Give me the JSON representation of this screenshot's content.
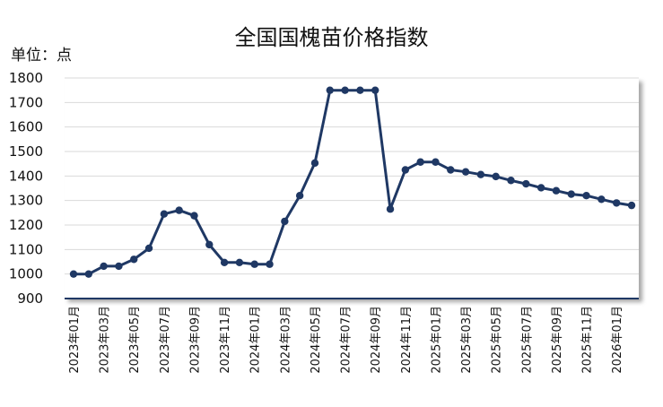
{
  "chart_data": {
    "type": "line",
    "title": "全国国槐苗价格指数",
    "unit_label": "单位：点",
    "xlabel": "",
    "ylabel": "",
    "ylim": [
      900,
      1800
    ],
    "yticks": [
      900,
      1000,
      1100,
      1200,
      1300,
      1400,
      1500,
      1600,
      1700,
      1800
    ],
    "grid": true,
    "categories": [
      "2023年01月",
      "2023年02月",
      "2023年03月",
      "2023年04月",
      "2023年05月",
      "2023年06月",
      "2023年07月",
      "2023年08月",
      "2023年09月",
      "2023年10月",
      "2023年11月",
      "2023年12月",
      "2024年01月",
      "2024年02月",
      "2024年03月",
      "2024年04月",
      "2024年05月",
      "2024年06月",
      "2024年07月",
      "2024年08月",
      "2024年09月",
      "2024年10月",
      "2024年11月",
      "2024年12月",
      "2025年01月",
      "2025年02月",
      "2025年03月",
      "2025年04月",
      "2025年05月",
      "2025年06月",
      "2025年07月",
      "2025年08月",
      "2025年09月",
      "2025年10月",
      "2025年11月",
      "2025年12月",
      "2026年01月",
      "2026年02月"
    ],
    "tick_labels_shown": [
      "2023年01月",
      "2023年03月",
      "2023年05月",
      "2023年07月",
      "2023年09月",
      "2023年11月",
      "2024年01月",
      "2024年03月",
      "2024年05月",
      "2024年07月",
      "2024年09月",
      "2024年11月",
      "2025年01月",
      "2025年03月",
      "2025年05月",
      "2025年07月",
      "2025年09月",
      "2025年11月",
      "2026年01月"
    ],
    "series": [
      {
        "values": [
          1000,
          1000,
          1032,
          1032,
          1060,
          1105,
          1245,
          1260,
          1238,
          1120,
          1047,
          1047,
          1040,
          1040,
          1215,
          1320,
          1453,
          1750,
          1750,
          1750,
          1750,
          1265,
          1425,
          1457,
          1457,
          1425,
          1417,
          1406,
          1398,
          1382,
          1368,
          1352,
          1340,
          1326,
          1320,
          1305,
          1290,
          1280
        ],
        "color": "#1f3864"
      }
    ]
  }
}
